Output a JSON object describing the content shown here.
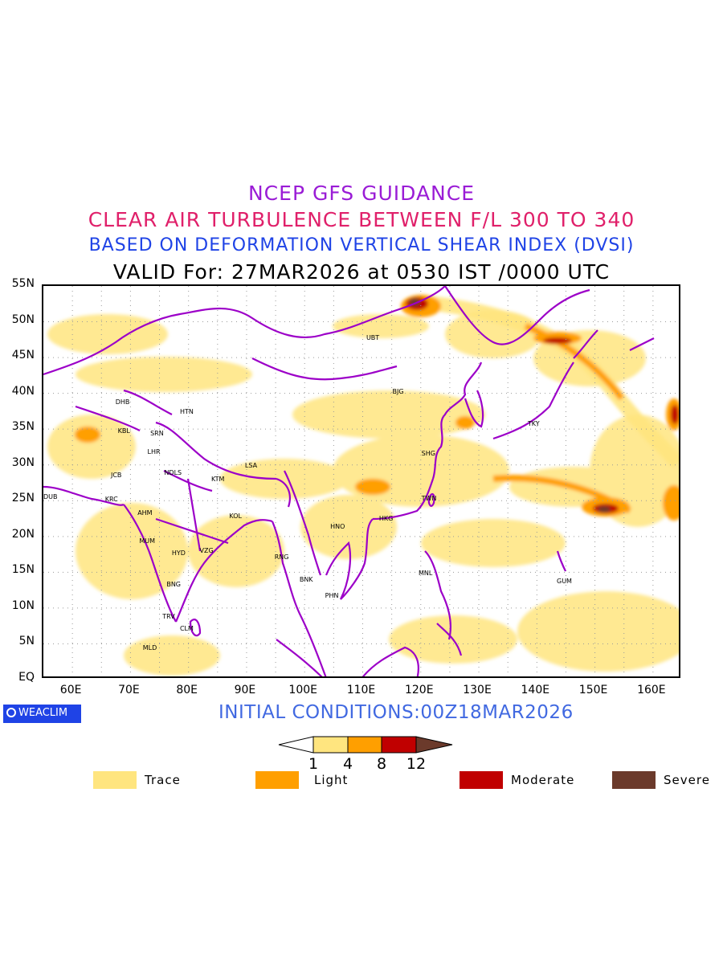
{
  "titles": {
    "line1": "NCEP GFS GUIDANCE",
    "line2": "CLEAR AIR TURBULENCE BETWEEN F/L 300 TO 340",
    "line3": "BASED ON DEFORMATION VERTICAL SHEAR INDEX (DVSI)",
    "line4": "VALID For: 27MAR2026 at 0530 IST /0000 UTC"
  },
  "map": {
    "lon_range": [
      55,
      165
    ],
    "lat_range": [
      0,
      55
    ],
    "lat_labels": [
      "55N",
      "50N",
      "45N",
      "40N",
      "35N",
      "30N",
      "25N",
      "20N",
      "15N",
      "10N",
      "5N",
      "EQ"
    ],
    "lon_labels": [
      "60E",
      "70E",
      "80E",
      "90E",
      "100E",
      "110E",
      "120E",
      "130E",
      "140E",
      "150E",
      "160E"
    ],
    "cities": [
      {
        "code": "UBT",
        "lon": 112,
        "lat": 47.5
      },
      {
        "code": "BJG",
        "lon": 116.5,
        "lat": 40
      },
      {
        "code": "TKY",
        "lon": 139.8,
        "lat": 35.5
      },
      {
        "code": "SHG",
        "lon": 121.5,
        "lat": 31.3
      },
      {
        "code": "TWN",
        "lon": 121.5,
        "lat": 25
      },
      {
        "code": "HKG",
        "lon": 114.2,
        "lat": 22.2
      },
      {
        "code": "HNO",
        "lon": 105.8,
        "lat": 21.1
      },
      {
        "code": "MNL",
        "lon": 121,
        "lat": 14.6
      },
      {
        "code": "GUM",
        "lon": 144.8,
        "lat": 13.5
      },
      {
        "code": "RNG",
        "lon": 96.2,
        "lat": 16.8
      },
      {
        "code": "BNK",
        "lon": 100.5,
        "lat": 13.7
      },
      {
        "code": "PHN",
        "lon": 104.9,
        "lat": 11.5
      },
      {
        "code": "LSA",
        "lon": 91.1,
        "lat": 29.6
      },
      {
        "code": "KTM",
        "lon": 85.3,
        "lat": 27.7
      },
      {
        "code": "KOL",
        "lon": 88.4,
        "lat": 22.6
      },
      {
        "code": "VZG",
        "lon": 83.3,
        "lat": 17.7
      },
      {
        "code": "HYD",
        "lon": 78.5,
        "lat": 17.4
      },
      {
        "code": "MUM",
        "lon": 72.9,
        "lat": 19.1
      },
      {
        "code": "AHM",
        "lon": 72.6,
        "lat": 23
      },
      {
        "code": "BNG",
        "lon": 77.6,
        "lat": 13
      },
      {
        "code": "TRV",
        "lon": 76.9,
        "lat": 8.5
      },
      {
        "code": "CLM",
        "lon": 79.9,
        "lat": 6.9
      },
      {
        "code": "MLD",
        "lon": 73.5,
        "lat": 4.2
      },
      {
        "code": "KRC",
        "lon": 67,
        "lat": 24.9
      },
      {
        "code": "JCB",
        "lon": 68,
        "lat": 28.3
      },
      {
        "code": "DUB",
        "lon": 55.3,
        "lat": 25.2
      },
      {
        "code": "KBL",
        "lon": 69.2,
        "lat": 34.5
      },
      {
        "code": "DHB",
        "lon": 68.8,
        "lat": 38.5
      },
      {
        "code": "SRN",
        "lon": 74.8,
        "lat": 34.1
      },
      {
        "code": "LHR",
        "lon": 74.3,
        "lat": 31.5
      },
      {
        "code": "NDLS",
        "lon": 77.2,
        "lat": 28.6
      },
      {
        "code": "HTN",
        "lon": 79.9,
        "lat": 37.1
      }
    ]
  },
  "bottom": {
    "logo": "WEACLIM",
    "initial_conditions": "INITIAL CONDITIONS:00Z18MAR2026"
  },
  "colorbar": {
    "ticks": [
      "1",
      "4",
      "8",
      "12"
    ],
    "colors": [
      "#ffffff",
      "#ffe57f",
      "#ff9f00",
      "#c00000",
      "#6b3a2b"
    ]
  },
  "legend": [
    {
      "label": "Trace",
      "color": "#ffe57f"
    },
    {
      "label": "Light",
      "color": "#ff9f00"
    },
    {
      "label": "Moderate",
      "color": "#c00000"
    },
    {
      "label": "Severe",
      "color": "#6b3a2b"
    }
  ]
}
